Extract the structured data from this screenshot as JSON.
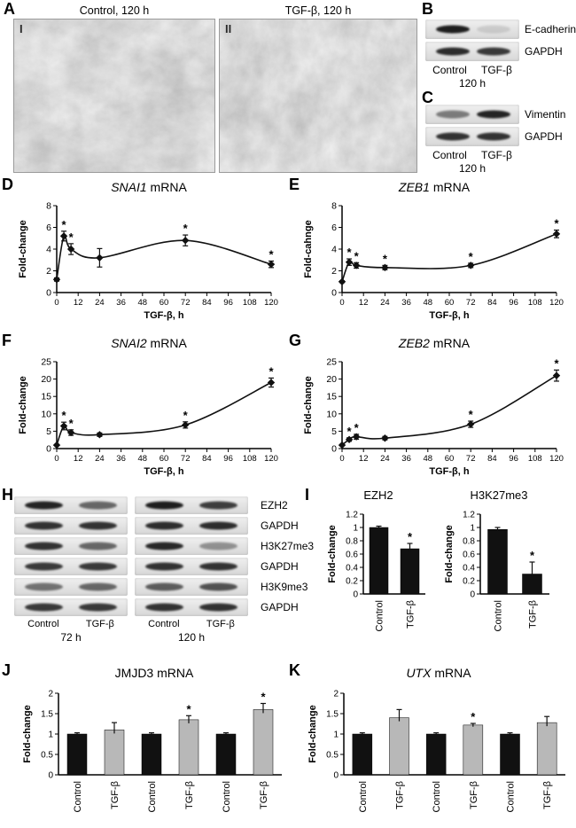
{
  "figure": {
    "panel_labels": {
      "A": "A",
      "B": "B",
      "C": "C",
      "D": "D",
      "E": "E",
      "F": "F",
      "G": "G",
      "H": "H",
      "I": "I",
      "J": "J",
      "K": "K"
    },
    "panelA": {
      "images": [
        {
          "roman": "I",
          "title": "Control, 120 h"
        },
        {
          "roman": "II",
          "title": "TGF-β, 120 h"
        }
      ]
    },
    "panelB": {
      "rows": [
        {
          "label": "E-cadherin",
          "bands": [
            0.95,
            0.12
          ]
        },
        {
          "label": "GAPDH",
          "bands": [
            0.88,
            0.82
          ]
        }
      ],
      "lane_labels": [
        "Control",
        "TGF-β"
      ],
      "time_label": "120 h"
    },
    "panelC": {
      "rows": [
        {
          "label": "Vimentin",
          "bands": [
            0.5,
            0.92
          ]
        },
        {
          "label": "GAPDH",
          "bands": [
            0.85,
            0.85
          ]
        }
      ],
      "lane_labels": [
        "Control",
        "TGF-β"
      ],
      "time_label": "120 h"
    },
    "panelH": {
      "rows": [
        {
          "label": "EZH2",
          "groups": [
            [
              0.92,
              0.6
            ],
            [
              0.95,
              0.8
            ]
          ]
        },
        {
          "label": "GAPDH",
          "groups": [
            [
              0.85,
              0.85
            ],
            [
              0.88,
              0.88
            ]
          ]
        },
        {
          "label": "H3K27me3",
          "groups": [
            [
              0.85,
              0.6
            ],
            [
              0.9,
              0.4
            ]
          ]
        },
        {
          "label": "GAPDH",
          "groups": [
            [
              0.82,
              0.82
            ],
            [
              0.85,
              0.85
            ]
          ]
        },
        {
          "label": "H3K9me3",
          "groups": [
            [
              0.55,
              0.6
            ],
            [
              0.65,
              0.7
            ]
          ]
        },
        {
          "label": "GAPDH",
          "groups": [
            [
              0.82,
              0.82
            ],
            [
              0.85,
              0.85
            ]
          ]
        }
      ],
      "groups": [
        {
          "lane_labels": [
            "Control",
            "TGF-β"
          ],
          "time_label": "72 h"
        },
        {
          "lane_labels": [
            "Control",
            "TGF-β"
          ],
          "time_label": "120 h"
        }
      ]
    }
  },
  "chart_data": [
    {
      "id": "D",
      "type": "line",
      "title_italic": "SNAI1",
      "title_rest": " mRNA",
      "xlabel": "TGF-β, h",
      "ylabel": "Fold-change",
      "x": [
        0,
        4,
        8,
        24,
        72,
        120
      ],
      "values": [
        1.2,
        5.2,
        4.0,
        3.2,
        4.8,
        2.6
      ],
      "errors": [
        0.15,
        0.45,
        0.5,
        0.85,
        0.5,
        0.3
      ],
      "sig": [
        false,
        true,
        true,
        false,
        true,
        true
      ],
      "xlim": [
        0,
        120
      ],
      "xticks": [
        0,
        12,
        24,
        36,
        48,
        60,
        72,
        84,
        96,
        108,
        120
      ],
      "ylim": [
        0,
        8
      ],
      "yticks": [
        0,
        2,
        4,
        6,
        8
      ]
    },
    {
      "id": "E",
      "type": "line",
      "title_italic": "ZEB1",
      "title_rest": " mRNA",
      "xlabel": "TGF-β, h",
      "ylabel": "Fold-cahnge",
      "x": [
        0,
        4,
        8,
        24,
        72,
        120
      ],
      "values": [
        1.0,
        2.8,
        2.5,
        2.3,
        2.5,
        5.4
      ],
      "errors": [
        0.08,
        0.3,
        0.25,
        0.2,
        0.2,
        0.35
      ],
      "sig": [
        false,
        true,
        true,
        true,
        true,
        true
      ],
      "xlim": [
        0,
        120
      ],
      "xticks": [
        0,
        12,
        24,
        36,
        48,
        60,
        72,
        84,
        96,
        108,
        120
      ],
      "ylim": [
        0,
        8
      ],
      "yticks": [
        0,
        2,
        4,
        6,
        8
      ]
    },
    {
      "id": "F",
      "type": "line",
      "title_italic": "SNAI2",
      "title_rest": " mRNA",
      "xlabel": "TGF-β, h",
      "ylabel": "Fold-change",
      "x": [
        0,
        4,
        8,
        24,
        72,
        120
      ],
      "values": [
        1.0,
        6.5,
        4.6,
        4.0,
        6.8,
        19.0
      ],
      "errors": [
        0.15,
        1.1,
        0.8,
        0.5,
        0.9,
        1.3
      ],
      "sig": [
        false,
        true,
        true,
        false,
        true,
        true
      ],
      "xlim": [
        0,
        120
      ],
      "xticks": [
        0,
        12,
        24,
        36,
        48,
        60,
        72,
        84,
        96,
        108,
        120
      ],
      "ylim": [
        0,
        25
      ],
      "yticks": [
        0,
        5,
        10,
        15,
        20,
        25
      ]
    },
    {
      "id": "G",
      "type": "line",
      "title_italic": "ZEB2",
      "title_rest": " mRNA",
      "xlabel": "TGF-β, h",
      "ylabel": "Fold-change",
      "x": [
        0,
        4,
        8,
        24,
        72,
        120
      ],
      "values": [
        1.0,
        2.6,
        3.4,
        3.0,
        7.0,
        21.0
      ],
      "errors": [
        0.15,
        0.5,
        0.7,
        0.5,
        0.9,
        1.6
      ],
      "sig": [
        false,
        true,
        true,
        false,
        true,
        true
      ],
      "xlim": [
        0,
        120
      ],
      "xticks": [
        0,
        12,
        24,
        36,
        48,
        60,
        72,
        84,
        96,
        108,
        120
      ],
      "ylim": [
        0,
        25
      ],
      "yticks": [
        0,
        5,
        10,
        15,
        20,
        25
      ]
    },
    {
      "id": "I1",
      "type": "bar",
      "title_italic": "",
      "title_rest": "EZH2",
      "ylabel": "Fold-change",
      "categories": [
        "Control",
        "TGF-β"
      ],
      "values": [
        1.0,
        0.68
      ],
      "errors": [
        0.02,
        0.08
      ],
      "sig": [
        false,
        true
      ],
      "colors": [
        "#111111",
        "#111111"
      ],
      "ylim": [
        0,
        1.2
      ],
      "yticks": [
        0,
        0.2,
        0.4,
        0.6,
        0.8,
        1,
        1.2
      ]
    },
    {
      "id": "I2",
      "type": "bar",
      "title_italic": "",
      "title_rest": "H3K27me3",
      "ylabel": "Fold-change",
      "categories": [
        "Control",
        "TGF-β"
      ],
      "values": [
        0.97,
        0.3
      ],
      "errors": [
        0.03,
        0.18
      ],
      "sig": [
        false,
        true
      ],
      "colors": [
        "#111111",
        "#111111"
      ],
      "ylim": [
        0,
        1.2
      ],
      "yticks": [
        0,
        0.2,
        0.4,
        0.6,
        0.8,
        1,
        1.2
      ]
    },
    {
      "id": "J",
      "type": "bar",
      "title_italic": "",
      "title_rest": "JMJD3 mRNA",
      "ylabel": "Fold-change",
      "categories": [
        "Control",
        "TGF-β",
        "Control",
        "TGF-β",
        "Control",
        "TGF-β"
      ],
      "values": [
        1.0,
        1.1,
        1.0,
        1.35,
        1.0,
        1.6
      ],
      "errors": [
        0.03,
        0.18,
        0.03,
        0.1,
        0.03,
        0.15
      ],
      "sig": [
        false,
        false,
        false,
        true,
        false,
        true
      ],
      "colors": [
        "#111111",
        "#b8b8b8",
        "#111111",
        "#b8b8b8",
        "#111111",
        "#b8b8b8"
      ],
      "ylim": [
        0,
        2
      ],
      "yticks": [
        0,
        0.5,
        1,
        1.5,
        2
      ]
    },
    {
      "id": "K",
      "type": "bar",
      "title_italic": "UTX",
      "title_rest": " mRNA",
      "ylabel": "Fold-change",
      "categories": [
        "Control",
        "TGF-β",
        "Control",
        "TGF-β",
        "Control",
        "TGF-β"
      ],
      "values": [
        1.0,
        1.4,
        1.0,
        1.22,
        1.0,
        1.28
      ],
      "errors": [
        0.03,
        0.2,
        0.03,
        0.04,
        0.03,
        0.15
      ],
      "sig": [
        false,
        false,
        false,
        true,
        false,
        false
      ],
      "colors": [
        "#111111",
        "#b8b8b8",
        "#111111",
        "#b8b8b8",
        "#111111",
        "#b8b8b8"
      ],
      "ylim": [
        0,
        2
      ],
      "yticks": [
        0,
        0.5,
        1,
        1.5,
        2
      ]
    }
  ]
}
